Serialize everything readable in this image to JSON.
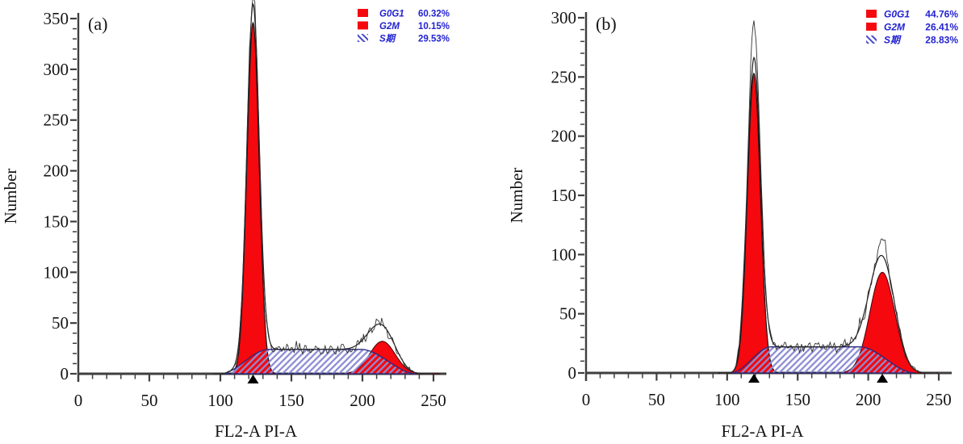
{
  "colors": {
    "peak_fill": "#f5080e",
    "peak_outline": "#141414",
    "g2m_outline": "#45000a",
    "s_outline": "#28287e",
    "hatch_line": "#8c8cd4",
    "legend_hatch_line": "#4949c8",
    "legend_text": "#2323d2",
    "axis": "#3f3f3f",
    "tick_text": "#141414",
    "trace": "#333333",
    "model_line": "#1b1b1b",
    "marker": "#000000"
  },
  "chart_data": [
    {
      "id": "a",
      "type": "area",
      "panel_label": "(a)",
      "xlabel": "FL2-A PI-A",
      "ylabel": "Number",
      "xlim": [
        0,
        250
      ],
      "ylim": [
        0,
        350
      ],
      "xticks": [
        0,
        50,
        100,
        150,
        200,
        250
      ],
      "yticks": [
        0,
        50,
        100,
        150,
        200,
        250,
        300,
        350
      ],
      "minor_step": 10,
      "grid": false,
      "legend_position": "top-right",
      "legend": [
        {
          "label": "G0G1",
          "value": "60.32%",
          "swatch": "red"
        },
        {
          "label": "G2M",
          "value": "10.15%",
          "swatch": "red"
        },
        {
          "label": "S期",
          "value": "29.53%",
          "swatch": "hatch"
        }
      ],
      "series": [
        {
          "name": "G0G1",
          "shape": "gaussian",
          "center": 123,
          "sigma": 4.3,
          "amplitude": 346
        },
        {
          "name": "G2M",
          "shape": "gaussian",
          "center": 214,
          "sigma": 9,
          "amplitude": 32
        },
        {
          "name": "S",
          "shape": "flat-top",
          "rise_start": 100,
          "plateau_start": 134,
          "plateau_end": 199,
          "fall_end": 238,
          "amplitude": 24
        }
      ],
      "raw_trace": {
        "noise_seed": 11,
        "extras": [
          {
            "center": 123,
            "sigma": 3.5,
            "amplitude": 7
          }
        ]
      },
      "axis_markers_x": [
        123
      ]
    },
    {
      "id": "b",
      "type": "area",
      "panel_label": "(b)",
      "xlabel": "FL2-A PI-A",
      "ylabel": "Number",
      "xlim": [
        0,
        250
      ],
      "ylim": [
        0,
        300
      ],
      "xticks": [
        0,
        50,
        100,
        150,
        200,
        250
      ],
      "yticks": [
        0,
        50,
        100,
        150,
        200,
        250,
        300
      ],
      "minor_step": 10,
      "grid": false,
      "legend_position": "top-right",
      "legend": [
        {
          "label": "G0G1",
          "value": "44.76%",
          "swatch": "red"
        },
        {
          "label": "G2M",
          "value": "26.41%",
          "swatch": "red"
        },
        {
          "label": "S期",
          "value": "28.83%",
          "swatch": "hatch"
        }
      ],
      "series": [
        {
          "name": "G0G1",
          "shape": "gaussian",
          "center": 119,
          "sigma": 4.6,
          "amplitude": 253
        },
        {
          "name": "G2M",
          "shape": "gaussian",
          "center": 210,
          "sigma": 8.8,
          "amplitude": 85
        },
        {
          "name": "S",
          "shape": "flat-top",
          "rise_start": 103,
          "plateau_start": 131,
          "plateau_end": 194,
          "fall_end": 233,
          "amplitude": 22
        }
      ],
      "raw_trace": {
        "noise_seed": 29,
        "extras": [
          {
            "center": 118.5,
            "sigma": 4,
            "amplitude": 27
          },
          {
            "center": 210.5,
            "sigma": 2.1,
            "amplitude": 16
          }
        ]
      },
      "axis_markers_x": [
        119,
        210
      ]
    }
  ]
}
